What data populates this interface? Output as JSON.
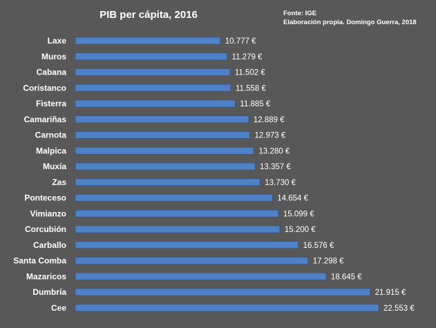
{
  "chart_data": {
    "type": "bar",
    "orientation": "horizontal",
    "title": "PIB per cápita, 2016",
    "source_lines": [
      "Fonte: IGE",
      "Elaboración propia. Domingo Guerra, 2018"
    ],
    "categories": [
      "Laxe",
      "Muros",
      "Cabana",
      "Coristanco",
      "Fisterra",
      "Camariñas",
      "Carnota",
      "Malpica",
      "Muxía",
      "Zas",
      "Ponteceso",
      "Vimianzo",
      "Corcubión",
      "Carballo",
      "Santa Comba",
      "Mazaricos",
      "Dumbría",
      "Cee"
    ],
    "values": [
      10777,
      11279,
      11502,
      11558,
      11885,
      12889,
      12973,
      13280,
      13357,
      13730,
      14654,
      15099,
      15200,
      16576,
      17298,
      18645,
      21915,
      22553
    ],
    "value_labels": [
      "10.777 €",
      "11.279 €",
      "11.502 €",
      "11.558 €",
      "11.885 €",
      "12.889 €",
      "12.973 €",
      "13.280 €",
      "13.357 €",
      "13.730 €",
      "14.654 €",
      "15.099 €",
      "15.200 €",
      "16.576 €",
      "17.298 €",
      "18.645 €",
      "21.915 €",
      "22.553 €"
    ],
    "xlim": [
      0,
      22553
    ],
    "grid": false,
    "legend": "none"
  },
  "colors": {
    "background": "#585858",
    "bar": "#4f81c6",
    "bar_edge": "#2c4f86",
    "text": "#ffffff"
  }
}
